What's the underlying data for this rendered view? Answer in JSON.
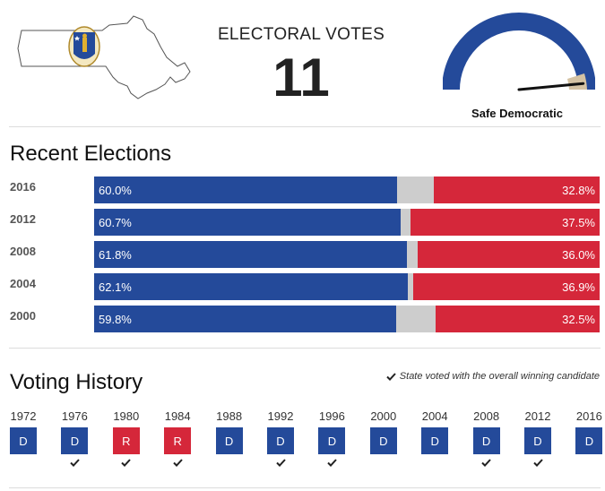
{
  "header": {
    "electoral_title": "ELECTORAL VOTES",
    "electoral_value": "11",
    "rating": "Safe Democratic",
    "gauge_level": 0.97
  },
  "colors": {
    "democrat": "#244a9a",
    "republican": "#d5273a",
    "other": "#cdcdcd"
  },
  "recent": {
    "title": "Recent Elections",
    "rows": [
      {
        "year": "2016",
        "dem": 60.0,
        "rep": 32.8,
        "dem_label": "60.0%",
        "rep_label": "32.8%"
      },
      {
        "year": "2012",
        "dem": 60.7,
        "rep": 37.5,
        "dem_label": "60.7%",
        "rep_label": "37.5%"
      },
      {
        "year": "2008",
        "dem": 61.8,
        "rep": 36.0,
        "dem_label": "61.8%",
        "rep_label": "36.0%"
      },
      {
        "year": "2004",
        "dem": 62.1,
        "rep": 36.9,
        "dem_label": "62.1%",
        "rep_label": "36.9%"
      },
      {
        "year": "2000",
        "dem": 59.8,
        "rep": 32.5,
        "dem_label": "59.8%",
        "rep_label": "32.5%"
      }
    ]
  },
  "history": {
    "title": "Voting History",
    "legend": "State voted with the overall winning candidate",
    "items": [
      {
        "year": "1972",
        "party": "D",
        "winner": false
      },
      {
        "year": "1976",
        "party": "D",
        "winner": true
      },
      {
        "year": "1980",
        "party": "R",
        "winner": true
      },
      {
        "year": "1984",
        "party": "R",
        "winner": true
      },
      {
        "year": "1988",
        "party": "D",
        "winner": false
      },
      {
        "year": "1992",
        "party": "D",
        "winner": true
      },
      {
        "year": "1996",
        "party": "D",
        "winner": true
      },
      {
        "year": "2000",
        "party": "D",
        "winner": false
      },
      {
        "year": "2004",
        "party": "D",
        "winner": false
      },
      {
        "year": "2008",
        "party": "D",
        "winner": true
      },
      {
        "year": "2012",
        "party": "D",
        "winner": true
      },
      {
        "year": "2016",
        "party": "D",
        "winner": false
      }
    ]
  }
}
